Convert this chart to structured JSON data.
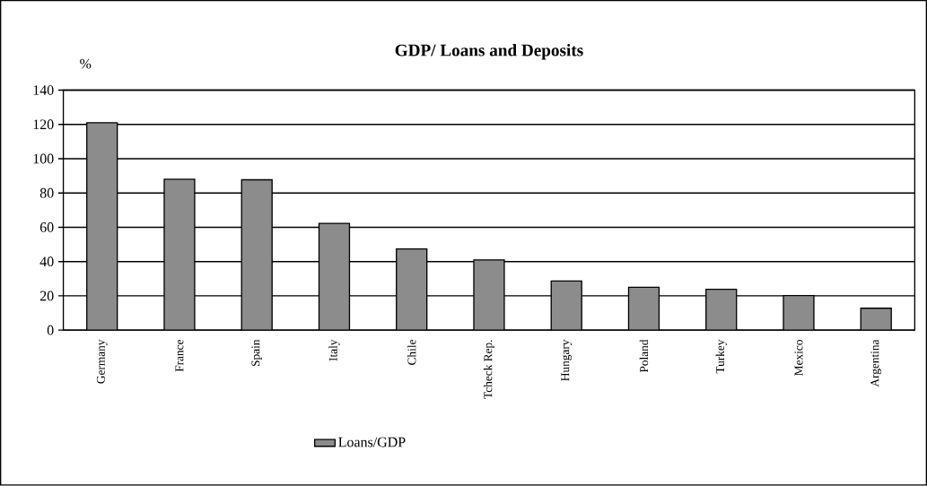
{
  "chart_data": {
    "type": "bar",
    "title": "GDP/ Loans and Deposits",
    "ylabel": "%",
    "categories": [
      "Germany",
      "France",
      "Spain",
      "Italy",
      "Chile",
      "Tcheck Rep.",
      "Hungary",
      "Poland",
      "Turkey",
      "Mexico",
      "Argentina"
    ],
    "series": [
      {
        "name": "Loans/GDP",
        "color": "#8c8c8c",
        "values": [
          121,
          88,
          87.7,
          62.3,
          47.4,
          41,
          28.7,
          25,
          23.8,
          20.2,
          12.8
        ]
      }
    ],
    "ylim": [
      0,
      140
    ],
    "yticks": [
      0,
      20,
      40,
      60,
      80,
      100,
      120,
      140
    ],
    "grid": "y",
    "legend": "bottom"
  }
}
